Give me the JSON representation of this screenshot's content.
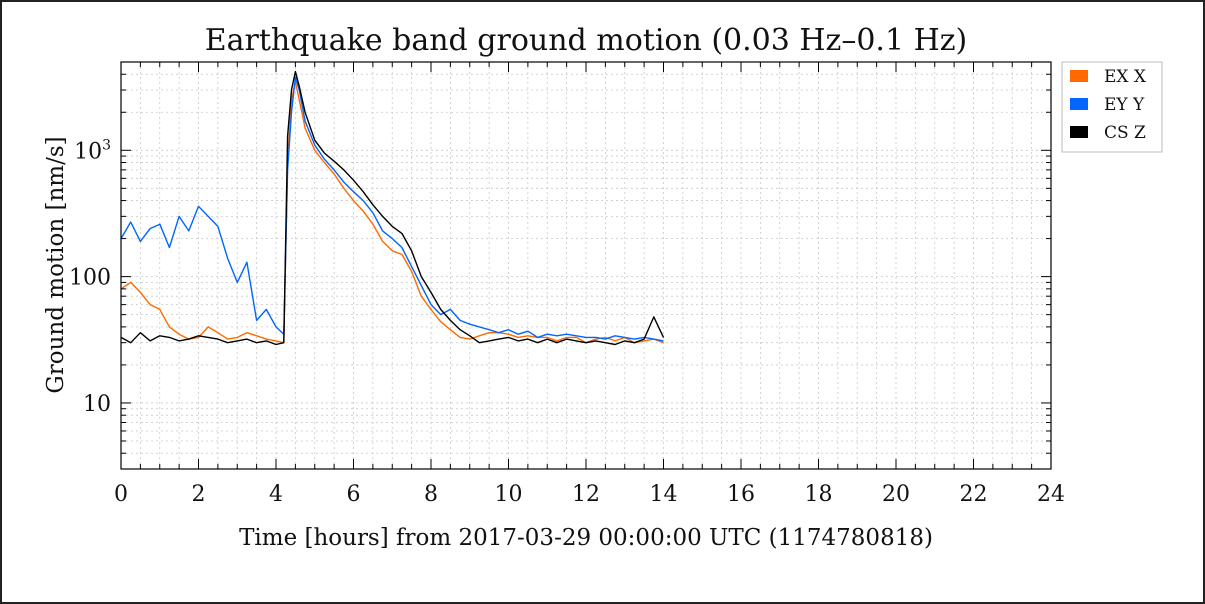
{
  "chart_data": {
    "type": "line",
    "title": "Earthquake band ground motion (0.03 Hz–0.1 Hz)",
    "xlabel": "Time [hours] from 2017-03-29 00:00:00 UTC (1174780818)",
    "ylabel": "Ground motion [nm/s]",
    "xlim": [
      0,
      24
    ],
    "ylim": [
      3,
      5000
    ],
    "yscale": "log",
    "grid": true,
    "legend_position": "outside-top-right",
    "x_ticks": [
      0,
      2,
      4,
      6,
      8,
      10,
      12,
      14,
      16,
      18,
      20,
      22,
      24
    ],
    "x_tick_labels": [
      "0",
      "2",
      "4",
      "6",
      "8",
      "10",
      "12",
      "14",
      "16",
      "18",
      "20",
      "22",
      "24"
    ],
    "y_ticks": [
      10,
      100,
      1000
    ],
    "y_tick_labels": [
      "10",
      "100",
      "10^3"
    ],
    "series": [
      {
        "name": "EX X",
        "color": "#ff6a00",
        "x": [
          0,
          0.25,
          0.5,
          0.75,
          1,
          1.25,
          1.5,
          1.75,
          2,
          2.25,
          2.5,
          2.75,
          3,
          3.25,
          3.5,
          3.75,
          4,
          4.2,
          4.3,
          4.4,
          4.5,
          4.6,
          4.75,
          5,
          5.25,
          5.5,
          5.75,
          6,
          6.25,
          6.5,
          6.75,
          7,
          7.25,
          7.5,
          7.75,
          8,
          8.25,
          8.5,
          8.75,
          9,
          9.25,
          9.5,
          9.75,
          10,
          10.25,
          10.5,
          10.75,
          11,
          11.25,
          11.5,
          11.75,
          12,
          12.25,
          12.5,
          12.75,
          13,
          13.25,
          13.5,
          13.75,
          14
        ],
        "y": [
          80,
          90,
          75,
          60,
          55,
          40,
          35,
          32,
          33,
          40,
          36,
          32,
          33,
          36,
          34,
          32,
          31,
          30,
          800,
          2500,
          3500,
          2500,
          1500,
          1000,
          800,
          650,
          500,
          400,
          330,
          260,
          190,
          160,
          150,
          110,
          70,
          55,
          44,
          38,
          33,
          32,
          34,
          36,
          36,
          35,
          33,
          34,
          33,
          33,
          31,
          33,
          33,
          30,
          32,
          33,
          31,
          33,
          30,
          31,
          32,
          30
        ]
      },
      {
        "name": "EY Y",
        "color": "#0066ff",
        "x": [
          0,
          0.25,
          0.5,
          0.75,
          1,
          1.25,
          1.5,
          1.75,
          2,
          2.25,
          2.5,
          2.75,
          3,
          3.25,
          3.5,
          3.75,
          4,
          4.2,
          4.3,
          4.4,
          4.5,
          4.6,
          4.75,
          5,
          5.25,
          5.5,
          5.75,
          6,
          6.25,
          6.5,
          6.75,
          7,
          7.25,
          7.5,
          7.75,
          8,
          8.25,
          8.5,
          8.75,
          9,
          9.25,
          9.5,
          9.75,
          10,
          10.25,
          10.5,
          10.75,
          11,
          11.25,
          11.5,
          11.75,
          12,
          12.25,
          12.5,
          12.75,
          13,
          13.25,
          13.5,
          13.75,
          14
        ],
        "y": [
          200,
          270,
          190,
          240,
          260,
          170,
          300,
          230,
          360,
          300,
          250,
          140,
          90,
          130,
          45,
          55,
          40,
          35,
          700,
          2000,
          3800,
          3000,
          1700,
          1100,
          850,
          700,
          560,
          470,
          400,
          320,
          230,
          200,
          170,
          120,
          85,
          60,
          50,
          55,
          45,
          42,
          40,
          38,
          36,
          38,
          35,
          37,
          33,
          35,
          34,
          35,
          34,
          33,
          33,
          32,
          34,
          33,
          32,
          33,
          32,
          31
        ]
      },
      {
        "name": "CS Z",
        "color": "#000000",
        "x": [
          0,
          0.25,
          0.5,
          0.75,
          1,
          1.25,
          1.5,
          1.75,
          2,
          2.25,
          2.5,
          2.75,
          3,
          3.25,
          3.5,
          3.75,
          4,
          4.2,
          4.3,
          4.4,
          4.5,
          4.6,
          4.75,
          5,
          5.25,
          5.5,
          5.75,
          6,
          6.25,
          6.5,
          6.75,
          7,
          7.25,
          7.5,
          7.75,
          8,
          8.25,
          8.5,
          8.75,
          9,
          9.25,
          9.5,
          9.75,
          10,
          10.25,
          10.5,
          10.75,
          11,
          11.25,
          11.5,
          11.75,
          12,
          12.25,
          12.5,
          12.75,
          13,
          13.25,
          13.5,
          13.75,
          14
        ],
        "y": [
          33,
          30,
          36,
          31,
          34,
          33,
          31,
          32,
          34,
          33,
          32,
          30,
          31,
          32,
          30,
          31,
          29,
          30,
          1300,
          3000,
          4200,
          3200,
          2000,
          1200,
          950,
          820,
          700,
          580,
          470,
          370,
          300,
          250,
          220,
          160,
          100,
          75,
          55,
          45,
          38,
          34,
          30,
          31,
          32,
          33,
          31,
          32,
          30,
          32,
          30,
          32,
          31,
          30,
          31,
          30,
          29,
          31,
          30,
          32,
          48,
          33
        ]
      }
    ]
  }
}
